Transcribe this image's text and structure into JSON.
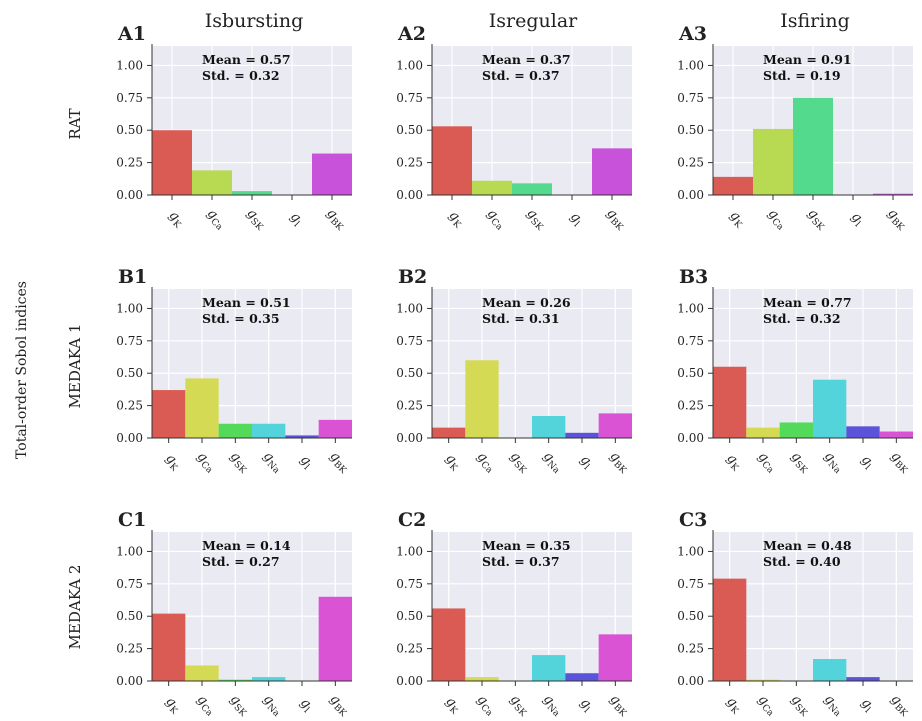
{
  "figure": {
    "ylabel": "Total-order Sobol indices",
    "column_titles": [
      "Isbursting",
      "Isregular",
      "Isfiring"
    ],
    "row_labels": [
      "RAT",
      "MEDAKA 1",
      "MEDAKA 2"
    ]
  },
  "chart_data": [
    {
      "type": "bar",
      "panel": "A1",
      "categories": [
        "g_K",
        "g_Ca",
        "g_SK",
        "g_l",
        "g_BK"
      ],
      "values": [
        0.5,
        0.19,
        0.03,
        0.0,
        0.32
      ],
      "colors": [
        "#da5b53",
        "#b8da52",
        "#53da8c",
        "#53c5da",
        "#c853da"
      ],
      "mean_text": "Mean = 0.57",
      "std_text": "Std. = 0.32",
      "ylim": [
        0,
        1.15
      ],
      "yticks": [
        "0.00",
        "0.25",
        "0.50",
        "0.75",
        "1.00"
      ]
    },
    {
      "type": "bar",
      "panel": "A2",
      "categories": [
        "g_K",
        "g_Ca",
        "g_SK",
        "g_l",
        "g_BK"
      ],
      "values": [
        0.53,
        0.11,
        0.09,
        0.0,
        0.36
      ],
      "colors": [
        "#da5b53",
        "#b8da52",
        "#53da8c",
        "#53c5da",
        "#c853da"
      ],
      "mean_text": "Mean = 0.37",
      "std_text": "Std. = 0.37",
      "ylim": [
        0,
        1.15
      ],
      "yticks": [
        "0.00",
        "0.25",
        "0.50",
        "0.75",
        "1.00"
      ]
    },
    {
      "type": "bar",
      "panel": "A3",
      "categories": [
        "g_K",
        "g_Ca",
        "g_SK",
        "g_l",
        "g_BK"
      ],
      "values": [
        0.14,
        0.51,
        0.75,
        0.0,
        0.01
      ],
      "colors": [
        "#da5b53",
        "#b8da52",
        "#53da8c",
        "#53c5da",
        "#c853da"
      ],
      "mean_text": "Mean = 0.91",
      "std_text": "Std. = 0.19",
      "ylim": [
        0,
        1.15
      ],
      "yticks": [
        "0.00",
        "0.25",
        "0.50",
        "0.75",
        "1.00"
      ]
    },
    {
      "type": "bar",
      "panel": "B1",
      "categories": [
        "g_K",
        "g_Ca",
        "g_SK",
        "g_Na",
        "g_l",
        "g_BK"
      ],
      "values": [
        0.37,
        0.46,
        0.11,
        0.11,
        0.02,
        0.14
      ],
      "colors": [
        "#da5b53",
        "#d4da53",
        "#53da5b",
        "#53d4da",
        "#5b53da",
        "#da53d4"
      ],
      "mean_text": "Mean = 0.51",
      "std_text": "Std. = 0.35",
      "ylim": [
        0,
        1.15
      ],
      "yticks": [
        "0.00",
        "0.25",
        "0.50",
        "0.75",
        "1.00"
      ]
    },
    {
      "type": "bar",
      "panel": "B2",
      "categories": [
        "g_K",
        "g_Ca",
        "g_SK",
        "g_Na",
        "g_l",
        "g_BK"
      ],
      "values": [
        0.08,
        0.6,
        0.0,
        0.17,
        0.04,
        0.19
      ],
      "colors": [
        "#da5b53",
        "#d4da53",
        "#53da5b",
        "#53d4da",
        "#5b53da",
        "#da53d4"
      ],
      "mean_text": "Mean = 0.26",
      "std_text": "Std. = 0.31",
      "ylim": [
        0,
        1.15
      ],
      "yticks": [
        "0.00",
        "0.25",
        "0.50",
        "0.75",
        "1.00"
      ]
    },
    {
      "type": "bar",
      "panel": "B3",
      "categories": [
        "g_K",
        "g_Ca",
        "g_SK",
        "g_Na",
        "g_l",
        "g_BK"
      ],
      "values": [
        0.55,
        0.08,
        0.12,
        0.45,
        0.09,
        0.05
      ],
      "colors": [
        "#da5b53",
        "#d4da53",
        "#53da5b",
        "#53d4da",
        "#5b53da",
        "#da53d4"
      ],
      "mean_text": "Mean = 0.77",
      "std_text": "Std. = 0.32",
      "ylim": [
        0,
        1.15
      ],
      "yticks": [
        "0.00",
        "0.25",
        "0.50",
        "0.75",
        "1.00"
      ]
    },
    {
      "type": "bar",
      "panel": "C1",
      "categories": [
        "g_K",
        "g_Ca",
        "g_SK",
        "g_Na",
        "g_l",
        "g_BK"
      ],
      "values": [
        0.52,
        0.12,
        0.01,
        0.03,
        0.0,
        0.65
      ],
      "colors": [
        "#da5b53",
        "#d4da53",
        "#53da5b",
        "#53d4da",
        "#5b53da",
        "#da53d4"
      ],
      "mean_text": "Mean = 0.14",
      "std_text": "Std. = 0.27",
      "ylim": [
        0,
        1.15
      ],
      "yticks": [
        "0.00",
        "0.25",
        "0.50",
        "0.75",
        "1.00"
      ]
    },
    {
      "type": "bar",
      "panel": "C2",
      "categories": [
        "g_K",
        "g_Ca",
        "g_SK",
        "g_Na",
        "g_l",
        "g_BK"
      ],
      "values": [
        0.56,
        0.03,
        0.0,
        0.2,
        0.06,
        0.36
      ],
      "colors": [
        "#da5b53",
        "#d4da53",
        "#53da5b",
        "#53d4da",
        "#5b53da",
        "#da53d4"
      ],
      "mean_text": "Mean = 0.35",
      "std_text": "Std. = 0.37",
      "ylim": [
        0,
        1.15
      ],
      "yticks": [
        "0.00",
        "0.25",
        "0.50",
        "0.75",
        "1.00"
      ]
    },
    {
      "type": "bar",
      "panel": "C3",
      "categories": [
        "g_K",
        "g_Ca",
        "g_SK",
        "g_Na",
        "g_l",
        "g_BK"
      ],
      "values": [
        0.79,
        0.01,
        0.0,
        0.17,
        0.03,
        0.0
      ],
      "colors": [
        "#da5b53",
        "#d4da53",
        "#53da5b",
        "#53d4da",
        "#5b53da",
        "#da53d4"
      ],
      "mean_text": "Mean = 0.48",
      "std_text": "Std. = 0.40",
      "ylim": [
        0,
        1.15
      ],
      "yticks": [
        "0.00",
        "0.25",
        "0.50",
        "0.75",
        "1.00"
      ]
    }
  ]
}
